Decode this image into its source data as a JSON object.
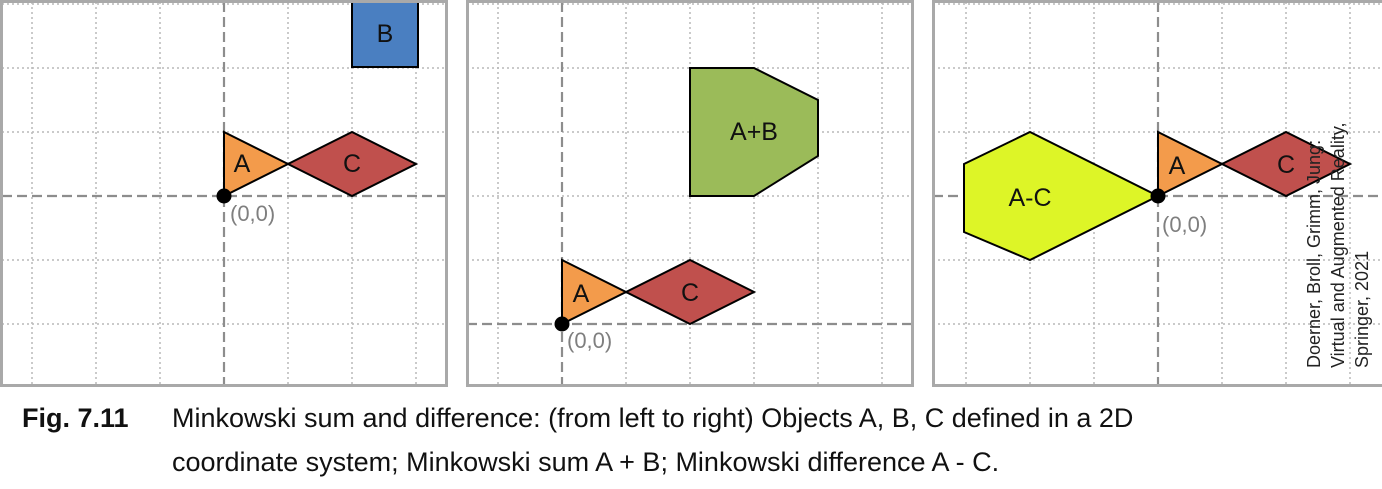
{
  "panels": [
    {
      "shapes": [
        {
          "label": "B",
          "fill": "#4a7fc1"
        },
        {
          "label": "A",
          "fill": "#f39b4b"
        },
        {
          "label": "C",
          "fill": "#c0504d"
        }
      ],
      "origin_label": "(0,0)"
    },
    {
      "shapes": [
        {
          "label": "A+B",
          "fill": "#9bbb59"
        },
        {
          "label": "A",
          "fill": "#f39b4b"
        },
        {
          "label": "C",
          "fill": "#c0504d"
        }
      ],
      "origin_label": "(0,0)"
    },
    {
      "shapes": [
        {
          "label": "A-C",
          "fill": "#ddf527"
        },
        {
          "label": "A",
          "fill": "#f39b4b"
        },
        {
          "label": "C",
          "fill": "#c0504d"
        }
      ],
      "origin_label": "(0,0)"
    }
  ],
  "credit": {
    "line1": "Doerner, Broll, Grimm, Jung:",
    "line2": "Virtual and Augmented Reality,",
    "line3": "Springer, 2021"
  },
  "caption": {
    "figure_number": "Fig. 7.11",
    "line1": "Minkowski sum and difference: (from left to right) Objects A, B, C defined in a 2D",
    "line2": "coordinate system; Minkowski sum A + B; Minkowski difference A - C."
  }
}
